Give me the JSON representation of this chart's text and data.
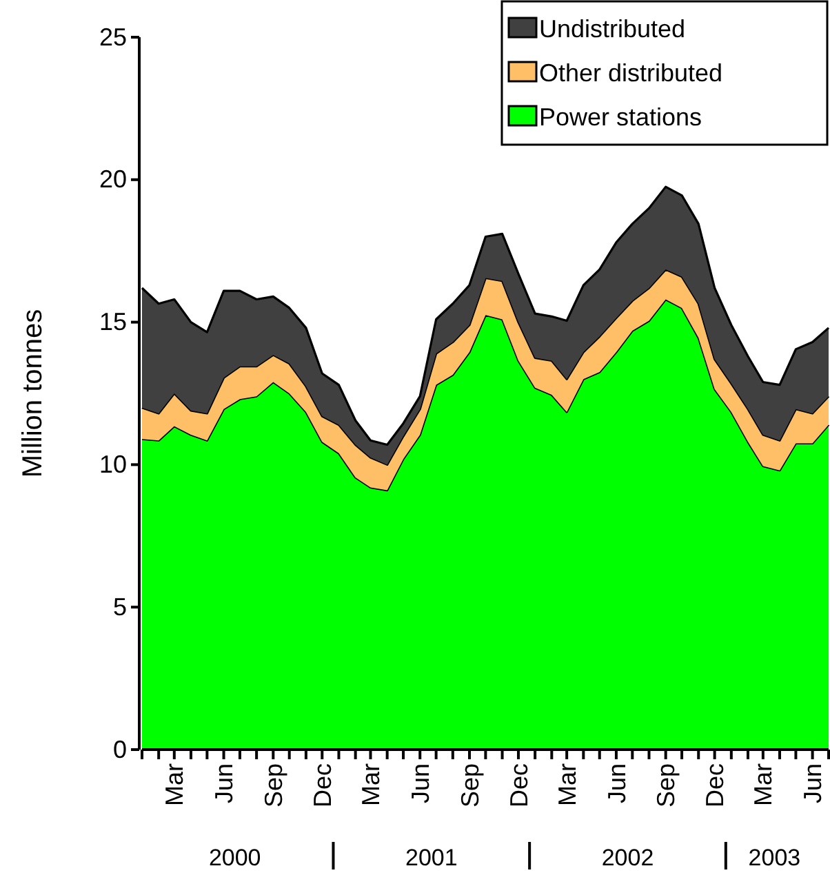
{
  "chart_data": {
    "type": "area",
    "stacked": true,
    "ylabel": "Million tonnes",
    "ylim": [
      0,
      25
    ],
    "yticks": [
      0,
      5,
      10,
      15,
      20,
      25
    ],
    "xlim": [
      "2000-01",
      "2003-07"
    ],
    "xticks": [
      {
        "value": "2000-01",
        "label": null
      },
      {
        "value": "2000-02",
        "label": null
      },
      {
        "value": "2000-03",
        "label": "Mar"
      },
      {
        "value": "2000-04",
        "label": null
      },
      {
        "value": "2000-05",
        "label": null
      },
      {
        "value": "2000-06",
        "label": "Jun"
      },
      {
        "value": "2000-07",
        "label": null
      },
      {
        "value": "2000-08",
        "label": null
      },
      {
        "value": "2000-09",
        "label": "Sep"
      },
      {
        "value": "2000-10",
        "label": null
      },
      {
        "value": "2000-11",
        "label": null
      },
      {
        "value": "2000-12",
        "label": "Dec"
      },
      {
        "value": "2001-01",
        "label": null
      },
      {
        "value": "2001-02",
        "label": null
      },
      {
        "value": "2001-03",
        "label": "Mar"
      },
      {
        "value": "2001-04",
        "label": null
      },
      {
        "value": "2001-05",
        "label": null
      },
      {
        "value": "2001-06",
        "label": "Jun"
      },
      {
        "value": "2001-07",
        "label": null
      },
      {
        "value": "2001-08",
        "label": null
      },
      {
        "value": "2001-09",
        "label": "Sep"
      },
      {
        "value": "2001-10",
        "label": null
      },
      {
        "value": "2001-11",
        "label": null
      },
      {
        "value": "2001-12",
        "label": "Dec"
      },
      {
        "value": "2002-01",
        "label": null
      },
      {
        "value": "2002-02",
        "label": null
      },
      {
        "value": "2002-03",
        "label": "Mar"
      },
      {
        "value": "2002-04",
        "label": null
      },
      {
        "value": "2002-05",
        "label": null
      },
      {
        "value": "2002-06",
        "label": "Jun"
      },
      {
        "value": "2002-07",
        "label": null
      },
      {
        "value": "2002-08",
        "label": null
      },
      {
        "value": "2002-09",
        "label": "Sep"
      },
      {
        "value": "2002-10",
        "label": null
      },
      {
        "value": "2002-11",
        "label": null
      },
      {
        "value": "2002-12",
        "label": "Dec"
      },
      {
        "value": "2003-01",
        "label": null
      },
      {
        "value": "2003-02",
        "label": null
      },
      {
        "value": "2003-03",
        "label": "Mar"
      },
      {
        "value": "2003-04",
        "label": null
      },
      {
        "value": "2003-05",
        "label": null
      },
      {
        "value": "2003-06",
        "label": "Jun"
      },
      {
        "value": "2003-07",
        "label": null
      }
    ],
    "x": [
      "2000-01",
      "2000-02",
      "2000-03",
      "2000-04",
      "2000-05",
      "2000-06",
      "2000-07",
      "2000-08",
      "2000-09",
      "2000-10",
      "2000-11",
      "2000-12",
      "2001-01",
      "2001-02",
      "2001-03",
      "2001-04",
      "2001-05",
      "2001-06",
      "2001-07",
      "2001-08",
      "2001-09",
      "2001-10",
      "2001-11",
      "2001-12",
      "2002-01",
      "2002-02",
      "2002-03",
      "2002-04",
      "2002-05",
      "2002-06",
      "2002-07",
      "2002-08",
      "2002-09",
      "2002-10",
      "2002-11",
      "2002-12",
      "2003-01",
      "2003-02",
      "2003-03",
      "2003-04",
      "2003-05",
      "2003-06",
      "2003-07"
    ],
    "series": [
      {
        "name": "Power stations",
        "color": "#00ff00",
        "values": [
          10.9,
          10.85,
          11.35,
          11.05,
          10.85,
          11.95,
          12.3,
          12.4,
          12.9,
          12.5,
          11.85,
          10.8,
          10.4,
          9.55,
          9.2,
          9.1,
          10.2,
          11.05,
          12.8,
          13.15,
          13.95,
          15.25,
          15.1,
          13.65,
          12.7,
          12.45,
          11.85,
          13.0,
          13.25,
          13.95,
          14.7,
          15.05,
          15.8,
          15.5,
          14.45,
          12.65,
          11.85,
          10.8,
          9.95,
          9.8,
          10.75,
          10.75,
          11.4
        ]
      },
      {
        "name": "Other distributed",
        "color": "#ffbf66",
        "values": [
          1.1,
          0.95,
          1.15,
          0.85,
          0.95,
          1.1,
          1.15,
          1.05,
          0.95,
          1.05,
          0.9,
          0.9,
          1.0,
          1.15,
          1.05,
          0.9,
          0.8,
          0.9,
          1.1,
          1.15,
          0.95,
          1.3,
          1.35,
          1.35,
          1.05,
          1.2,
          1.15,
          0.95,
          1.25,
          1.2,
          1.05,
          1.15,
          1.05,
          1.1,
          1.2,
          1.05,
          1.0,
          1.15,
          1.1,
          1.05,
          1.2,
          1.05,
          1.0
        ]
      },
      {
        "name": "Undistributed",
        "color": "#404040",
        "values": [
          4.2,
          3.85,
          3.3,
          3.1,
          2.85,
          3.05,
          2.65,
          2.35,
          2.05,
          1.95,
          2.05,
          1.5,
          1.4,
          0.85,
          0.6,
          0.7,
          0.45,
          0.45,
          1.2,
          1.35,
          1.4,
          1.45,
          1.65,
          1.7,
          1.55,
          1.55,
          2.05,
          2.35,
          2.35,
          2.65,
          2.7,
          2.8,
          2.9,
          2.85,
          2.8,
          2.5,
          2.05,
          1.85,
          1.85,
          1.95,
          2.1,
          2.5,
          2.4
        ]
      }
    ],
    "legend": "top right",
    "annotations": [
      "2000",
      "2001",
      "2002",
      "2003"
    ]
  }
}
